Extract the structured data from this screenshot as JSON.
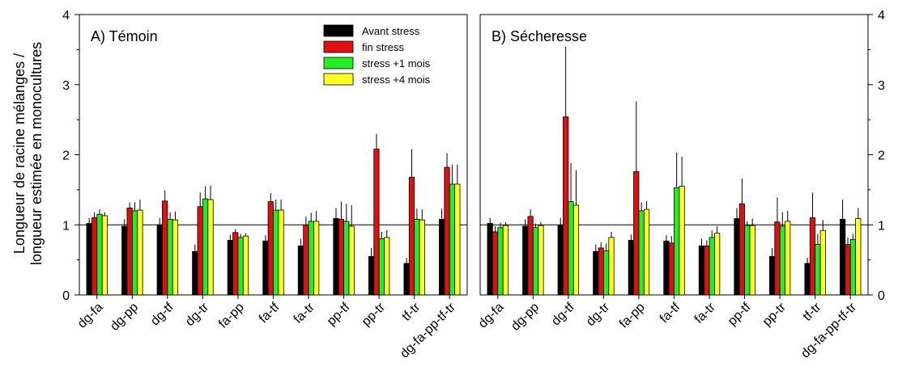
{
  "chart_data": {
    "type": "bar",
    "ylabel_line1": "Longueur de racine mélanges /",
    "ylabel_line2": "longueur estimée en monocultures",
    "ylim": [
      0,
      4
    ],
    "yticks": [
      0,
      1,
      2,
      3,
      4
    ],
    "reference_line": 1,
    "legend": {
      "placement": "top-right of left panel",
      "entries": [
        "Avant stress",
        "fin stress",
        "stress +1 mois",
        "stress +4 mois"
      ]
    },
    "series_colors": [
      "#000000",
      "#e01010",
      "#22ee22",
      "#ffff22"
    ],
    "panels": [
      {
        "title": "A) Témoin",
        "categories": [
          "dg-fa",
          "dg-pp",
          "dg-tf",
          "dg-tr",
          "fa-pp",
          "fa-tf",
          "fa-tr",
          "pp-tf",
          "pp-tr",
          "tf-tr",
          "dg-fa-pp-tf-tr"
        ],
        "series": [
          {
            "name": "Avant stress",
            "values": [
              1.02,
              0.98,
              1.0,
              0.62,
              0.78,
              0.77,
              0.7,
              1.09,
              0.55,
              0.45,
              1.08
            ],
            "errors": [
              0.08,
              0.1,
              0.1,
              0.1,
              0.08,
              0.08,
              0.1,
              0.15,
              0.12,
              0.08,
              0.15
            ]
          },
          {
            "name": "fin stress",
            "values": [
              1.1,
              1.24,
              1.34,
              1.26,
              0.89,
              1.33,
              1.0,
              1.08,
              2.08,
              1.68,
              1.82
            ],
            "errors": [
              0.08,
              0.08,
              0.15,
              0.2,
              0.05,
              0.12,
              0.12,
              0.25,
              0.22,
              0.4,
              0.2
            ]
          },
          {
            "name": "stress +1 mois",
            "values": [
              1.15,
              1.2,
              1.08,
              1.37,
              0.82,
              1.21,
              1.05,
              1.05,
              0.8,
              1.08,
              1.58
            ],
            "errors": [
              0.07,
              0.12,
              0.1,
              0.18,
              0.05,
              0.15,
              0.12,
              0.25,
              0.1,
              0.15,
              0.28
            ]
          },
          {
            "name": "stress +4 mois",
            "values": [
              1.13,
              1.21,
              1.07,
              1.36,
              0.84,
              1.21,
              1.05,
              0.98,
              0.82,
              1.07,
              1.58
            ],
            "errors": [
              0.05,
              0.15,
              0.12,
              0.2,
              0.04,
              0.15,
              0.15,
              0.3,
              0.1,
              0.15,
              0.28
            ]
          }
        ]
      },
      {
        "title": "B) Sécheresse",
        "categories": [
          "dg-fa",
          "dg-pp",
          "dg-tf",
          "dg-tr",
          "fa-pp",
          "fa-tf",
          "fa-tr",
          "pp-tf",
          "pp-tr",
          "tf-tr",
          "dg-fa-pp-tf-tr"
        ],
        "series": [
          {
            "name": "Avant stress",
            "values": [
              1.02,
              0.98,
              1.0,
              0.62,
              0.78,
              0.77,
              0.7,
              1.09,
              0.55,
              0.45,
              1.08
            ],
            "errors": [
              0.08,
              0.1,
              0.1,
              0.1,
              0.08,
              0.08,
              0.1,
              0.15,
              0.12,
              0.08,
              0.28
            ]
          },
          {
            "name": "fin stress",
            "values": [
              0.9,
              1.12,
              2.54,
              0.67,
              1.76,
              0.74,
              0.7,
              1.3,
              1.04,
              1.1,
              0.72
            ],
            "errors": [
              0.08,
              0.1,
              1.0,
              0.08,
              1.0,
              0.1,
              0.08,
              0.36,
              0.35,
              0.36,
              0.1
            ]
          },
          {
            "name": "stress +1 mois",
            "values": [
              0.96,
              0.96,
              1.33,
              0.63,
              1.2,
              1.53,
              0.82,
              0.99,
              0.98,
              0.72,
              0.79
            ],
            "errors": [
              0.07,
              0.06,
              0.55,
              0.1,
              0.12,
              0.5,
              0.1,
              0.06,
              0.2,
              0.15,
              0.08
            ]
          },
          {
            "name": "stress +4 mois",
            "values": [
              0.99,
              0.99,
              1.28,
              0.82,
              1.22,
              1.55,
              0.88,
              0.99,
              1.05,
              0.92,
              1.09
            ],
            "errors": [
              0.05,
              0.05,
              0.5,
              0.08,
              0.12,
              0.42,
              0.1,
              0.1,
              0.15,
              0.15,
              0.15
            ]
          }
        ]
      }
    ]
  }
}
